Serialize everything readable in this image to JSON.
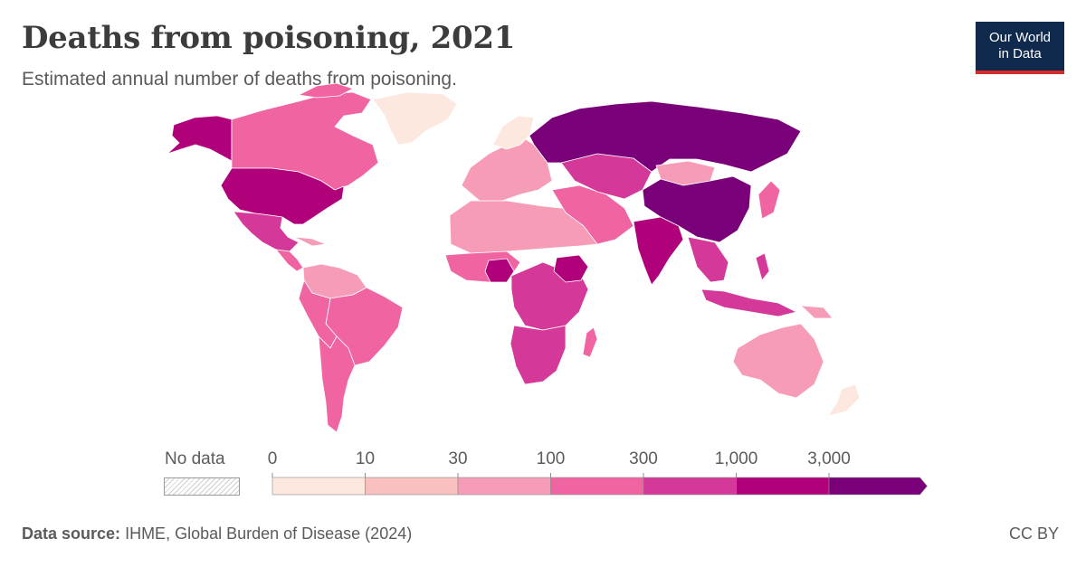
{
  "title": "Deaths from poisoning, 2021",
  "subtitle": "Estimated annual number of deaths from poisoning.",
  "logo": {
    "line1": "Our World",
    "line2": "in Data"
  },
  "legend": {
    "no_data_label": "No data",
    "ticks": [
      "0",
      "10",
      "30",
      "100",
      "300",
      "1,000",
      "3,000"
    ],
    "colors": [
      "#fde8e0",
      "#f9c0c0",
      "#f69cb6",
      "#ef64a1",
      "#d43899",
      "#b0007a",
      "#7a007a"
    ]
  },
  "footer": {
    "source_label": "Data source:",
    "source_text": "IHME, Global Burden of Disease (2024)",
    "license": "CC BY"
  },
  "map_fills": {
    "russia": "#7a007a",
    "china": "#7a007a",
    "india": "#b0007a",
    "usa": "#b0007a",
    "nigeria": "#b0007a",
    "ethiopia": "#b0007a",
    "canada": "#ef64a1",
    "alaska": "#b0007a",
    "greenland": "#fde8e0",
    "mexico": "#d43899",
    "brazil": "#ef64a1",
    "argentina": "#ef64a1",
    "australia": "#f69cb6",
    "africa": "#ef64a1",
    "europe": "#f69cb6",
    "mongolia": "#f69cb6"
  }
}
